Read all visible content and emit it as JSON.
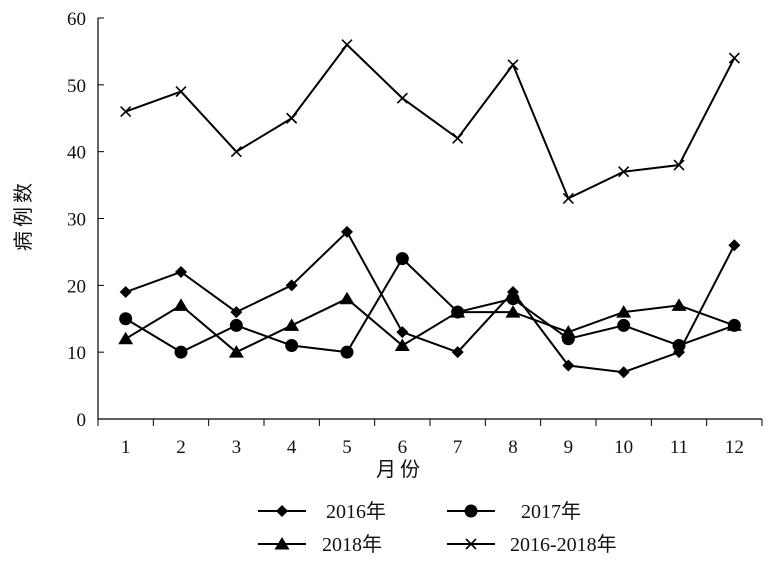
{
  "chart_data": {
    "type": "line",
    "title": "",
    "xlabel": "月份",
    "ylabel": "病例数",
    "categories": [
      "1",
      "2",
      "3",
      "4",
      "5",
      "6",
      "7",
      "8",
      "9",
      "10",
      "11",
      "12"
    ],
    "ylim": [
      0,
      60
    ],
    "yticks": [
      "0",
      "10",
      "20",
      "30",
      "40",
      "50",
      "60"
    ],
    "grid": false,
    "legend_position": "bottom",
    "series": [
      {
        "name": "2016年",
        "marker": "diamond",
        "color": "#000000",
        "values": [
          19,
          22,
          16,
          20,
          28,
          13,
          10,
          19,
          8,
          7,
          10,
          26
        ]
      },
      {
        "name": "2017年",
        "marker": "circle",
        "color": "#000000",
        "values": [
          15,
          10,
          14,
          11,
          10,
          24,
          16,
          18,
          12,
          14,
          11,
          14
        ]
      },
      {
        "name": "2018年",
        "marker": "triangle",
        "color": "#000000",
        "values": [
          12,
          17,
          10,
          14,
          18,
          11,
          16,
          16,
          13,
          16,
          17,
          14
        ]
      },
      {
        "name": "2016-2018年",
        "marker": "x",
        "color": "#000000",
        "values": [
          46,
          49,
          40,
          45,
          56,
          48,
          42,
          53,
          33,
          37,
          38,
          54
        ]
      }
    ]
  }
}
